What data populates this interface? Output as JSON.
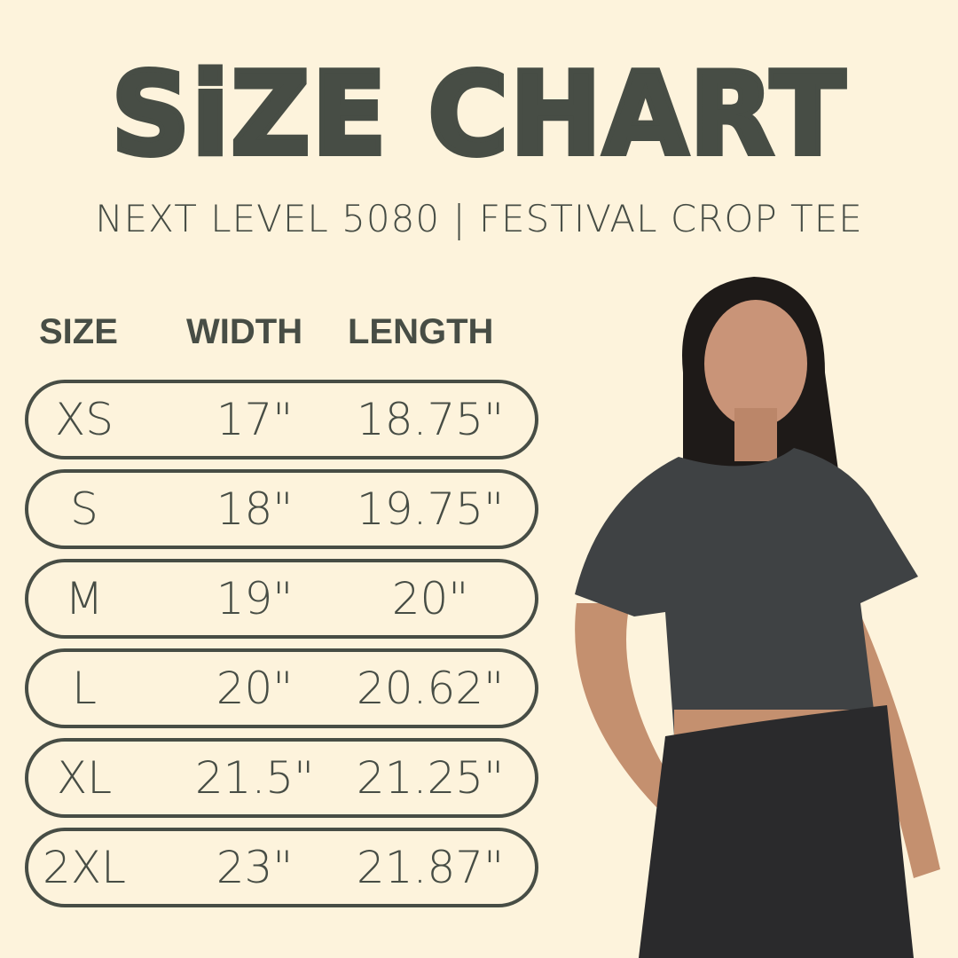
{
  "title": "SiZE CHART",
  "subtitle": "NEXT LEVEL 5080 | FESTIVAL CROP TEE",
  "colors": {
    "background": "#fdf3dc",
    "text": "#474d45"
  },
  "table": {
    "headers": [
      "SIZE",
      "WIDTH",
      "LENGTH"
    ],
    "rows": [
      {
        "size": "XS",
        "width": "17\"",
        "length": "18.75\""
      },
      {
        "size": "S",
        "width": "18\"",
        "length": "19.75\""
      },
      {
        "size": "M",
        "width": "19\"",
        "length": "20\""
      },
      {
        "size": "L",
        "width": "20\"",
        "length": "20.62\""
      },
      {
        "size": "XL",
        "width": "21.5\"",
        "length": "21.25\""
      },
      {
        "size": "2XL",
        "width": "23\"",
        "length": "21.87\""
      }
    ]
  },
  "image": {
    "subject": "model-wearing-crop-tee"
  }
}
